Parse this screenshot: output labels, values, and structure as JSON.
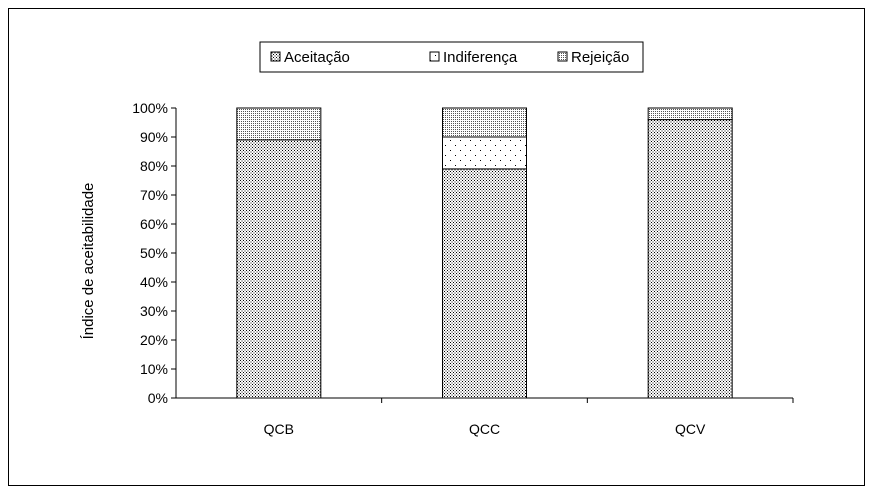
{
  "chart_data": {
    "type": "bar",
    "stacked": true,
    "categories": [
      "QCB",
      "QCC",
      "QCV"
    ],
    "series": [
      {
        "name": "Aceitação",
        "values": [
          89,
          79,
          96
        ],
        "pattern": "dense-dots"
      },
      {
        "name": "Indiferença",
        "values": [
          0,
          11,
          0
        ],
        "pattern": "sparse-dots"
      },
      {
        "name": "Rejeição",
        "values": [
          11,
          10,
          4
        ],
        "pattern": "medium-dots"
      }
    ],
    "xlabel": "",
    "ylabel": "Índice de aceitabilidade",
    "ylim": [
      0,
      100
    ],
    "yticks": [
      "0%",
      "10%",
      "20%",
      "30%",
      "40%",
      "50%",
      "60%",
      "70%",
      "80%",
      "90%",
      "100%"
    ],
    "grid": false,
    "legend_position": "top"
  }
}
